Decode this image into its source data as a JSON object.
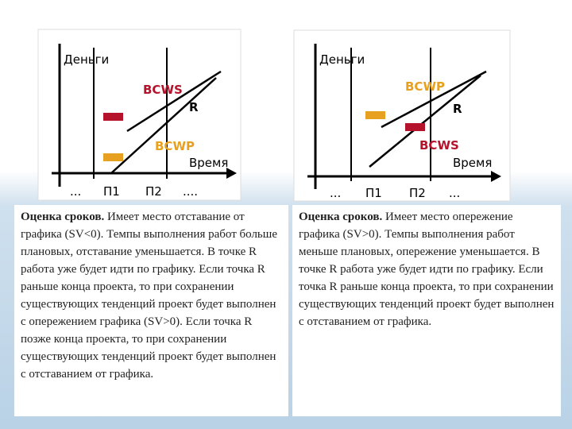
{
  "left": {
    "diagram": {
      "y_label": "Деньги",
      "x_label": "Время",
      "upper_label": "BCWS",
      "lower_label": "BCWP",
      "point_label": "R",
      "x_ticks": [
        "...",
        "П1",
        "П2",
        "...."
      ]
    },
    "text": {
      "lead": "Оценка сроков.",
      "body": " Имеет место отставание от графика (SV<0). Темпы выполнения работ больше плановых, отставание уменьшается. В точке R работа уже будет идти по графику. Если точка R раньше конца проекта, то при сохранении существующих тенденций проект будет выполнен с опережением графика (SV>0). Если точка R позже конца проекта, то при сохранении существующих тенденций проект будет выполнен с отставанием от графика."
    }
  },
  "right": {
    "diagram": {
      "y_label": "Деньги",
      "x_label": "Время",
      "upper_label": "BCWP",
      "lower_label": "BCWS",
      "point_label": "R",
      "x_ticks": [
        "...",
        "П1",
        "П2",
        "..."
      ]
    },
    "text": {
      "lead": "Оценка сроков.",
      "body": " Имеет место опережение графика (SV>0). Темпы выполнения работ меньше плановых, опережение уменьшается. В точке R работа уже будет идти по графику. Если точка R раньше конца проекта, то при сохранении существующих тенденций проект будет выполнен с отставанием от графика."
    }
  }
}
